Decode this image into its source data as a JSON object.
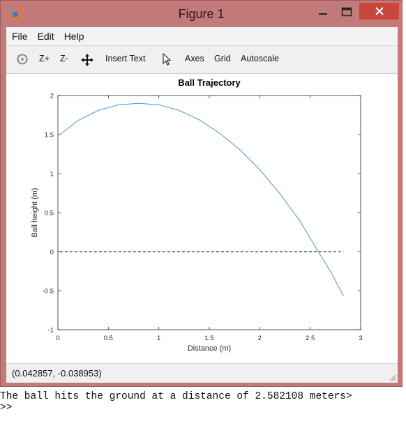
{
  "window": {
    "title": "Figure 1"
  },
  "menu": {
    "items": [
      "File",
      "Edit",
      "Help"
    ]
  },
  "toolbar": {
    "zoom_in": "Z+",
    "zoom_out": "Z-",
    "insert_text": "Insert Text",
    "axes": "Axes",
    "grid": "Grid",
    "autoscale": "Autoscale",
    "icons": [
      "rotate-icon",
      "pan-icon",
      "select-arrow-icon"
    ]
  },
  "status": {
    "coords": "(0.042857, -0.038953)"
  },
  "console": {
    "line1": "The ball hits the ground at a distance of 2.582108 meters>",
    "line2": ">>"
  },
  "chart_data": {
    "type": "line",
    "title": "Ball Trajectory",
    "xlabel": "Distance (m)",
    "ylabel": "Ball height (m)",
    "xlim": [
      0,
      3
    ],
    "ylim": [
      -1,
      2
    ],
    "xticks": [
      "0",
      "0.5",
      "1",
      "1.5",
      "2",
      "2.5",
      "3"
    ],
    "yticks": [
      "-1",
      "-0.5",
      "0",
      "0.5",
      "1",
      "1.5",
      "2"
    ],
    "grid": false,
    "series": [
      {
        "color": "#5b9bd5",
        "style": "solid",
        "x": [
          0.02,
          0.2,
          0.4,
          0.6,
          0.8,
          1.0,
          1.2,
          1.4,
          1.6,
          1.8,
          2.0,
          2.2,
          2.4,
          2.58,
          2.7,
          2.83
        ],
        "y": [
          1.5,
          1.68,
          1.81,
          1.88,
          1.9,
          1.88,
          1.81,
          1.69,
          1.52,
          1.31,
          1.05,
          0.74,
          0.39,
          0.0,
          -0.25,
          -0.57
        ]
      },
      {
        "color": "#000000",
        "style": "dashed",
        "x": [
          0.02,
          2.83
        ],
        "y": [
          0,
          0
        ]
      }
    ]
  }
}
